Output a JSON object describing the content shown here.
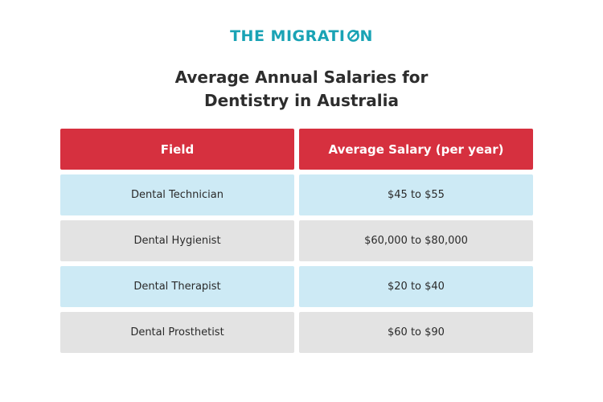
{
  "logo": {
    "text_before": "THE MIGRATI",
    "text_after": "N",
    "color": "#1aa3b5"
  },
  "title": {
    "line1": "Average Annual Salaries for",
    "line2": "Dentistry in Australia"
  },
  "table": {
    "headers": [
      "Field",
      "Average Salary (per year)"
    ],
    "header_color": "#d6303f",
    "row_colors": [
      "#cdeaf5",
      "#e3e3e3"
    ],
    "rows": [
      {
        "field": "Dental Technician",
        "salary": "$45 to $55"
      },
      {
        "field": "Dental Hygienist",
        "salary": "$60,000 to $80,000"
      },
      {
        "field": "Dental Therapist",
        "salary": "$20 to $40"
      },
      {
        "field": "Dental Prosthetist",
        "salary": "$60 to $90"
      }
    ]
  }
}
